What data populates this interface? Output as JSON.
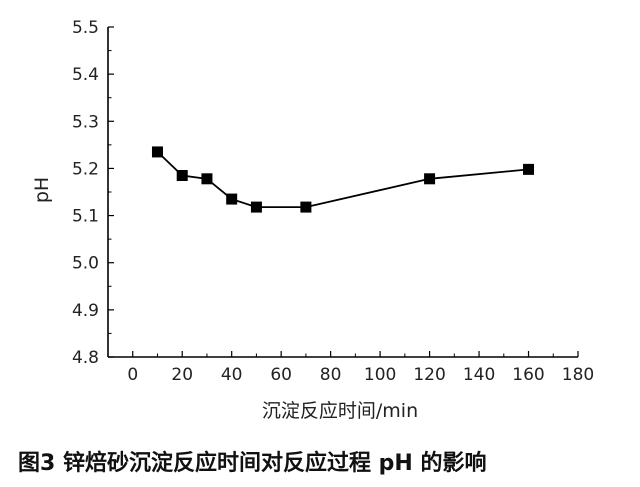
{
  "chart_data": {
    "type": "line",
    "title": "",
    "xlabel": "沉淀反应时间/min",
    "ylabel": "pH",
    "xlim": [
      -10,
      180
    ],
    "ylim": [
      4.8,
      5.5
    ],
    "x_ticks": [
      0,
      20,
      40,
      60,
      80,
      100,
      120,
      140,
      160,
      180
    ],
    "y_ticks": [
      4.8,
      4.9,
      5.0,
      5.1,
      5.2,
      5.3,
      5.4,
      5.5
    ],
    "grid": false,
    "legend": "none",
    "series": [
      {
        "x": [
          10,
          20,
          30,
          40,
          50,
          70,
          120,
          160
        ],
        "y": [
          5.235,
          5.185,
          5.178,
          5.135,
          5.118,
          5.118,
          5.178,
          5.198
        ],
        "marker": "square",
        "color": "#000000"
      }
    ]
  },
  "caption": "图3 锌焙砂沉淀反应时间对反应过程 pH 的影响"
}
